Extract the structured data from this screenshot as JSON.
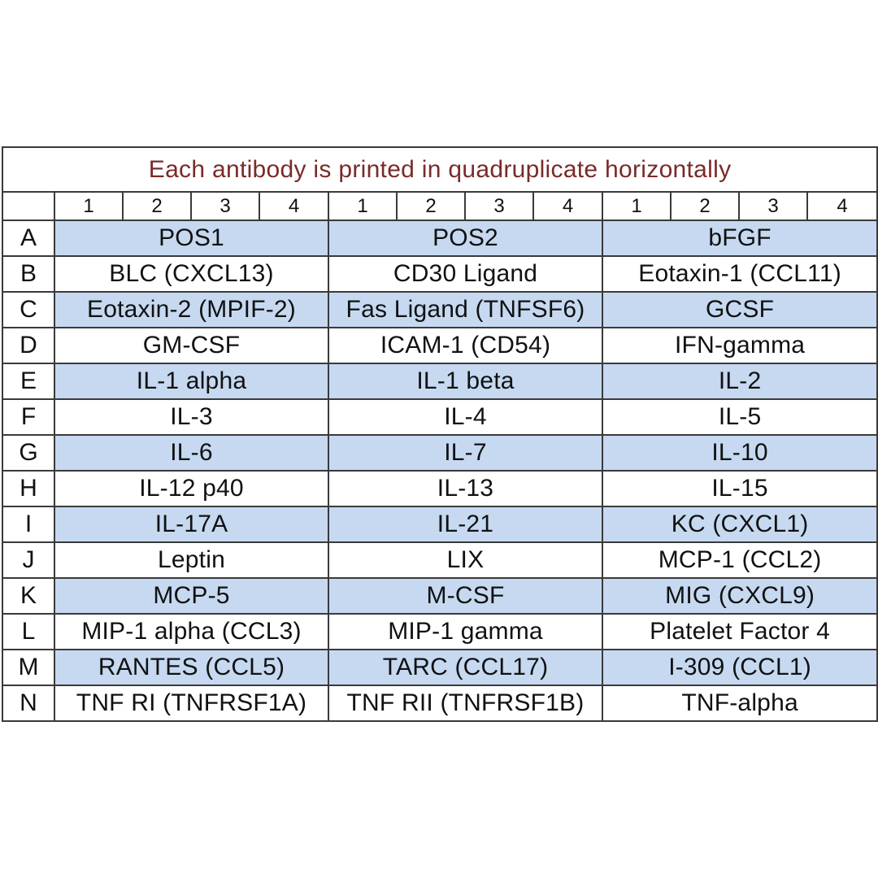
{
  "title": "Each antibody is printed in quadruplicate horizontally",
  "column_numbers": [
    "1",
    "2",
    "3",
    "4",
    "1",
    "2",
    "3",
    "4",
    "1",
    "2",
    "3",
    "4"
  ],
  "shade_color": "#c6d9f1",
  "title_color": "#7a2a2a",
  "rows": [
    {
      "label": "A",
      "shaded": true,
      "cells": [
        "POS1",
        "POS2",
        "bFGF"
      ]
    },
    {
      "label": "B",
      "shaded": false,
      "cells": [
        "BLC (CXCL13)",
        "CD30 Ligand",
        "Eotaxin-1 (CCL11)"
      ]
    },
    {
      "label": "C",
      "shaded": true,
      "cells": [
        "Eotaxin-2 (MPIF-2)",
        "Fas Ligand (TNFSF6)",
        "GCSF"
      ]
    },
    {
      "label": "D",
      "shaded": false,
      "cells": [
        "GM-CSF",
        "ICAM-1 (CD54)",
        "IFN-gamma"
      ]
    },
    {
      "label": "E",
      "shaded": true,
      "cells": [
        "IL-1 alpha",
        "IL-1 beta",
        "IL-2"
      ]
    },
    {
      "label": "F",
      "shaded": false,
      "cells": [
        "IL-3",
        "IL-4",
        "IL-5"
      ]
    },
    {
      "label": "G",
      "shaded": true,
      "cells": [
        "IL-6",
        "IL-7",
        "IL-10"
      ]
    },
    {
      "label": "H",
      "shaded": false,
      "cells": [
        "IL-12 p40",
        "IL-13",
        "IL-15"
      ]
    },
    {
      "label": "I",
      "shaded": true,
      "cells": [
        "IL-17A",
        "IL-21",
        "KC (CXCL1)"
      ]
    },
    {
      "label": "J",
      "shaded": false,
      "cells": [
        "Leptin",
        "LIX",
        "MCP-1 (CCL2)"
      ]
    },
    {
      "label": "K",
      "shaded": true,
      "cells": [
        "MCP-5",
        "M-CSF",
        "MIG (CXCL9)"
      ]
    },
    {
      "label": "L",
      "shaded": false,
      "cells": [
        "MIP-1 alpha (CCL3)",
        "MIP-1 gamma",
        "Platelet Factor 4"
      ]
    },
    {
      "label": "M",
      "shaded": true,
      "cells": [
        "RANTES (CCL5)",
        "TARC (CCL17)",
        "I-309 (CCL1)"
      ]
    },
    {
      "label": "N",
      "shaded": false,
      "cells": [
        "TNF RI (TNFRSF1A)",
        "TNF RII (TNFRSF1B)",
        "TNF-alpha"
      ]
    }
  ]
}
